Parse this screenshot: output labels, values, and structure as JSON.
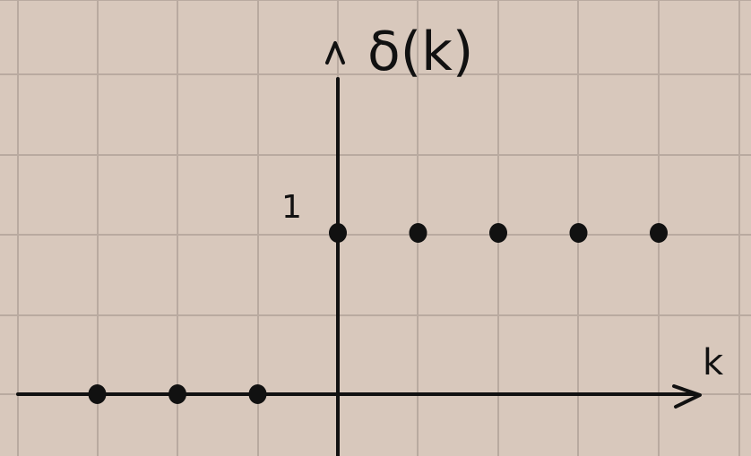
{
  "labels": {
    "y_axis": "δ(k)",
    "x_axis": "k",
    "y_tick": "1"
  },
  "colors": {
    "paper": "#d8c8bc",
    "grid": "#b9aaa0",
    "ink": "#111111"
  },
  "chart_data": {
    "type": "scatter",
    "xlabel": "k",
    "ylabel": "δ(k)",
    "y_ticks": [
      "1"
    ],
    "grid": true,
    "points": [
      {
        "k": -3,
        "value": 0
      },
      {
        "k": -2,
        "value": 0
      },
      {
        "k": -1,
        "value": 0
      },
      {
        "k": 0,
        "value": 1
      },
      {
        "k": 1,
        "value": 1
      },
      {
        "k": 2,
        "value": 1
      },
      {
        "k": 3,
        "value": 1
      },
      {
        "k": 4,
        "value": 1
      }
    ]
  }
}
